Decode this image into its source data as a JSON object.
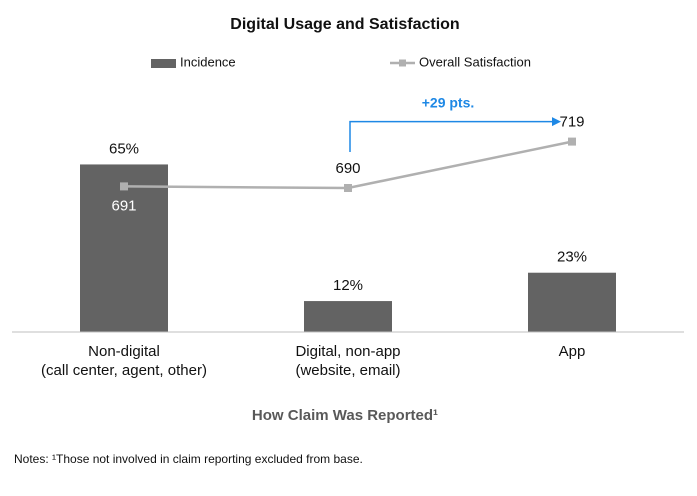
{
  "chart_data": {
    "type": "bar_line",
    "title": "Digital Usage and Satisfaction",
    "categories": [
      [
        "Non-digital",
        "(call center, agent, other)"
      ],
      [
        "Digital, non-app",
        "(website, email)"
      ],
      [
        "App"
      ]
    ],
    "series": [
      {
        "name": "Incidence",
        "type": "bar",
        "color": "#636363",
        "values": [
          65,
          12,
          23
        ],
        "value_labels": [
          "65%",
          "12%",
          "23%"
        ]
      },
      {
        "name": "Overall Satisfaction",
        "type": "line",
        "axis": "y2",
        "color": "#b0b0b0",
        "values": [
          691,
          690,
          719
        ],
        "value_label_position": [
          "below",
          "above",
          "above"
        ]
      }
    ],
    "ylim": [
      0,
      90
    ],
    "y2lim": [
      600,
      745
    ],
    "annotation": {
      "text": "+29 pts.",
      "color": "#1e88e5"
    },
    "x_label": "How Claim Was Reported¹",
    "notes": "Notes: ¹Those not involved in claim reporting excluded from base.",
    "legend": "top"
  }
}
